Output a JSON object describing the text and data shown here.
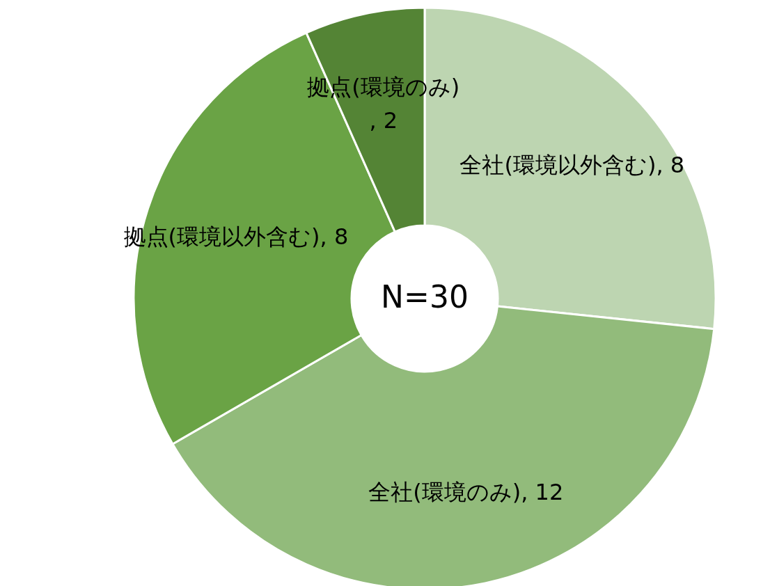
{
  "chart_data": {
    "type": "donut",
    "categories": [
      "全社(環境以外含む)",
      "全社(環境のみ)",
      "拠点(環境以外含む)",
      "拠点(環境のみ)"
    ],
    "values": [
      8,
      12,
      8,
      2
    ],
    "colors": [
      "#bdd5b1",
      "#92bb7b",
      "#6aa345",
      "#548435"
    ],
    "value_labels": [
      ", 8",
      ", 12",
      ", 8",
      ", 2"
    ],
    "annotations": [
      "N=30"
    ]
  }
}
